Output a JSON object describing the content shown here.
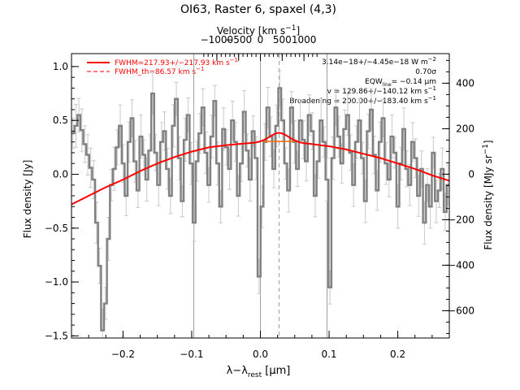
{
  "chart_data": {
    "type": "line",
    "title": "OI63, Raster 6, spaxel (4,3)",
    "xlabel_prefix": "λ−λ",
    "xlabel_sub": "rest",
    "xlabel_suffix": " [μm]",
    "ylabel_left": "Flux density [Jy]",
    "ylabel_right": "Flux density [MJy sr",
    "ylabel_right_sup": "−1",
    "ylabel_right_close": "]",
    "top_axis_label": "Velocity [km s",
    "top_axis_label_sup": "−1",
    "top_axis_label_close": "]",
    "xlim": [
      -0.275,
      0.275
    ],
    "ylim": [
      -1.52,
      1.12
    ],
    "right_ylim": [
      -720,
      530
    ],
    "xticks": [
      -0.2,
      -0.1,
      0.0,
      0.1,
      0.2
    ],
    "xtick_labels": [
      "−0.2",
      "−0.1",
      "0.0",
      "0.1",
      "0.2"
    ],
    "yticks": [
      -1.5,
      -1.0,
      -0.5,
      0.0,
      0.5,
      1.0
    ],
    "ytick_labels": [
      "−1.5",
      "−1.0",
      "−0.5",
      "0.0",
      "0.5",
      "1.0"
    ],
    "right_yticks": [
      -600,
      -400,
      -200,
      0,
      200,
      400
    ],
    "right_ytick_labels": [
      "−600",
      "−400",
      "−200",
      "0",
      "200",
      "400"
    ],
    "top_ticks_lambda": [
      -0.0634,
      -0.0317,
      0.0,
      0.0317,
      0.0634
    ],
    "top_tick_labels": [
      "−1000",
      "−500",
      "0",
      "500",
      "1000"
    ],
    "vlines_solid": [
      -0.097,
      0.0,
      0.097
    ],
    "vline_dashed": 0.0272,
    "legend": [
      {
        "text": "FWHM=217.93+/−217.93 km s",
        "sup": "−1",
        "style": "solid"
      },
      {
        "text": "FWHM_th=86.57 km s",
        "sup": "−1",
        "style": "dashed"
      }
    ],
    "annotations": [
      "3.14e−18+/−4.45e−18 W m",
      "0.70σ",
      "EQW",
      "= −0.14 μm",
      "v = 129.86+/−140.12 km s",
      "Broadening = 200.00+/−183.40 km s"
    ],
    "annotation_sups": [
      "−2",
      "−1",
      "−1"
    ],
    "annotation_eqw_sub": "line",
    "spectrum_x": [
      -0.275,
      -0.2707,
      -0.2664,
      -0.2621,
      -0.2578,
      -0.2535,
      -0.2492,
      -0.2449,
      -0.2406,
      -0.2363,
      -0.232,
      -0.2277,
      -0.2234,
      -0.2191,
      -0.2148,
      -0.2105,
      -0.2062,
      -0.2019,
      -0.1976,
      -0.1933,
      -0.189,
      -0.1847,
      -0.1804,
      -0.1761,
      -0.1718,
      -0.1675,
      -0.1632,
      -0.1589,
      -0.1546,
      -0.1503,
      -0.146,
      -0.1417,
      -0.1374,
      -0.1331,
      -0.1288,
      -0.1245,
      -0.1202,
      -0.1159,
      -0.1116,
      -0.1073,
      -0.103,
      -0.0987,
      -0.0944,
      -0.0901,
      -0.0858,
      -0.0815,
      -0.0772,
      -0.0729,
      -0.0686,
      -0.0643,
      -0.06,
      -0.0557,
      -0.0514,
      -0.0471,
      -0.0428,
      -0.0385,
      -0.0342,
      -0.0299,
      -0.0256,
      -0.0213,
      -0.017,
      -0.0127,
      -0.0084,
      -0.0041,
      0.0002,
      0.0045,
      0.0088,
      0.0131,
      0.0174,
      0.0217,
      0.026,
      0.0303,
      0.0346,
      0.0389,
      0.0432,
      0.0475,
      0.0518,
      0.0561,
      0.0604,
      0.0647,
      0.069,
      0.0733,
      0.0776,
      0.0819,
      0.0862,
      0.0905,
      0.0948,
      0.0991,
      0.1034,
      0.1077,
      0.112,
      0.1163,
      0.1206,
      0.1249,
      0.1292,
      0.1335,
      0.1378,
      0.1421,
      0.1464,
      0.1507,
      0.155,
      0.1593,
      0.1636,
      0.1679,
      0.1722,
      0.1765,
      0.1808,
      0.1851,
      0.1894,
      0.1937,
      0.198,
      0.2023,
      0.2066,
      0.2109,
      0.2152,
      0.2195,
      0.2238,
      0.2281,
      0.2324,
      0.2367,
      0.241,
      0.2453,
      0.2496,
      0.2539,
      0.2582,
      0.2625,
      0.2668,
      0.2711
    ],
    "spectrum_y": [
      0.38,
      0.45,
      0.55,
      0.41,
      0.28,
      0.18,
      0.06,
      -0.05,
      -0.45,
      -0.85,
      -1.45,
      -1.2,
      -0.6,
      -0.1,
      0.05,
      0.25,
      0.45,
      0.1,
      -0.2,
      0.3,
      0.52,
      0.12,
      -0.15,
      0.35,
      0.18,
      -0.05,
      0.22,
      0.75,
      0.2,
      -0.1,
      0.3,
      0.4,
      0.05,
      -0.2,
      0.45,
      0.7,
      0.15,
      -0.25,
      0.32,
      0.55,
      0.1,
      -0.45,
      0.12,
      0.38,
      0.62,
      0.2,
      -0.1,
      0.35,
      0.68,
      0.1,
      -0.3,
      0.42,
      0.25,
      0.05,
      0.5,
      0.3,
      -0.2,
      0.1,
      0.58,
      0.22,
      -0.05,
      0.4,
      0.15,
      -0.95,
      -0.3,
      0.3,
      0.62,
      0.35,
      0.05,
      0.45,
      0.8,
      0.5,
      0.1,
      -0.15,
      0.62,
      0.3,
      0.05,
      0.5,
      0.32,
      0.12,
      0.55,
      0.4,
      -0.2,
      0.12,
      0.5,
      0.3,
      -0.05,
      -1.05,
      0.15,
      0.62,
      0.35,
      0.1,
      0.42,
      0.55,
      0.2,
      -0.1,
      0.3,
      0.5,
      0.15,
      -0.25,
      0.4,
      0.6,
      0.18,
      -0.15,
      0.3,
      0.52,
      0.1,
      -0.05,
      0.35,
      0.2,
      -0.3,
      0.1,
      0.42,
      0.05,
      -0.1,
      0.3,
      0.15,
      -0.2,
      0.05,
      -0.45,
      -0.1,
      -0.3,
      0.2,
      -0.25,
      -0.15,
      0.05,
      -0.35,
      -0.1
    ],
    "continuum_x": [
      -0.275,
      -0.25,
      -0.225,
      -0.2,
      -0.175,
      -0.15,
      -0.125,
      -0.1,
      -0.075,
      -0.05,
      -0.025,
      0.0,
      0.025,
      0.05,
      0.075,
      0.1,
      0.125,
      0.15,
      0.175,
      0.2,
      0.225,
      0.25,
      0.275
    ],
    "continuum_y": [
      -0.28,
      -0.2,
      -0.12,
      -0.05,
      0.03,
      0.1,
      0.16,
      0.21,
      0.25,
      0.27,
      0.285,
      0.295,
      0.3,
      0.295,
      0.28,
      0.26,
      0.23,
      0.19,
      0.15,
      0.1,
      0.05,
      -0.01,
      -0.06
    ],
    "line_center": 0.0272,
    "line_amplitude": 0.085,
    "line_sigma": 0.0135,
    "thermal_level": 0.305,
    "thermal_xrange": [
      0.005,
      0.05
    ],
    "colors": {
      "spectrum": "#808080",
      "errorbar": "#c8c8c8",
      "fit": "#ff0000",
      "thermal": "#ff6a00",
      "axes": "#000000",
      "vline": "#a0a0a0"
    }
  }
}
